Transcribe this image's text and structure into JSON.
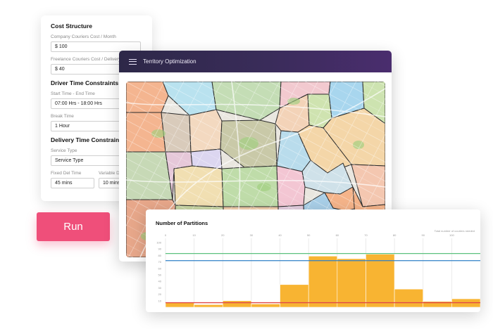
{
  "form": {
    "cost_section": {
      "title": "Cost Structure",
      "company_label": "Company Couriers Cost / Month",
      "company_value": "$ 100",
      "freelance_label": "Freelance Couriers Cost / Delivery",
      "freelance_value": "$ 40"
    },
    "driver_section": {
      "title": "Driver Time Constraints",
      "time_label": "Start Time  -  End Time",
      "time_value": "07:00 Hrs  -  18:00 Hrs",
      "break_label": "Break Time",
      "break_value": "1 Hour"
    },
    "delivery_section": {
      "title": "Delivery Time Constraints",
      "service_label": "Service Type",
      "service_value": "Service Type",
      "fixed_label": "Fixed Del Time",
      "fixed_value": "45 mins",
      "variable_label": "Variable Del Time",
      "variable_value": "10 mins"
    }
  },
  "run_label": "Run",
  "territory": {
    "title": "Territory Optimization"
  },
  "colors": {
    "accent": "#ef4f7a",
    "header_start": "#2d2848",
    "header_end": "#4a2d6e",
    "bar": "#f8b432",
    "line_green": "#5cc17e",
    "line_blue": "#2f80c7",
    "line_red": "#e04848"
  },
  "chart_data": {
    "type": "bar",
    "title": "Number of Partitions",
    "note": "Total number of couriers needed",
    "x_ticks": [
      "0",
      "10",
      "20",
      "30",
      "40",
      "50",
      "60",
      "70",
      "80",
      "90",
      "100"
    ],
    "y_ticks": [
      "100",
      "90",
      "80",
      "70",
      "60",
      "50",
      "40",
      "30",
      "20",
      "10"
    ],
    "xlim": [
      0,
      110
    ],
    "ylim": [
      0,
      100
    ],
    "values": [
      7,
      4,
      10,
      5,
      35,
      79,
      75,
      82,
      28,
      9,
      13
    ],
    "bar_width": 10,
    "reference_lines": [
      {
        "value": 83,
        "color": "#5cc17e"
      },
      {
        "value": 72,
        "color": "#2f80c7"
      },
      {
        "value": 7,
        "color": "#e04848"
      }
    ]
  }
}
